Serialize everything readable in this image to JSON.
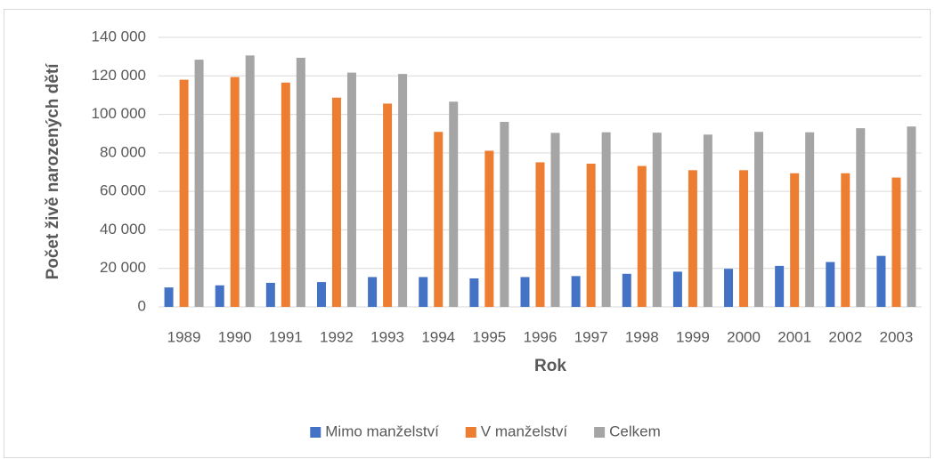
{
  "chart_data": {
    "type": "bar",
    "x_label": "Rok",
    "y_label": "Počet živě narozených dětí",
    "categories": [
      "1989",
      "1990",
      "1991",
      "1992",
      "1993",
      "1994",
      "1995",
      "1996",
      "1997",
      "1998",
      "1999",
      "2000",
      "2001",
      "2002",
      "2003"
    ],
    "series": [
      {
        "name": "Mimo manželství",
        "color": "#4472c4",
        "values": [
          10100,
          11200,
          12500,
          12900,
          15500,
          15500,
          14800,
          15500,
          16000,
          17200,
          18300,
          19800,
          21300,
          23300,
          26500
        ]
      },
      {
        "name": "V manželství",
        "color": "#ed7d31",
        "values": [
          118000,
          119400,
          116500,
          108700,
          105600,
          90900,
          81100,
          75100,
          74400,
          73200,
          71000,
          71000,
          69400,
          69400,
          67200
        ]
      },
      {
        "name": "Celkem",
        "color": "#a5a5a5",
        "values": [
          128400,
          130600,
          129400,
          121700,
          121000,
          106600,
          96100,
          90400,
          90700,
          90500,
          89500,
          90900,
          90700,
          92800,
          93700
        ]
      }
    ],
    "ylim": [
      0,
      140000
    ],
    "yticks": [
      0,
      {
        "value": 20000,
        "label": "20 000"
      },
      {
        "value": 40000,
        "label": "40 000"
      },
      {
        "value": 60000,
        "label": "60 000"
      },
      {
        "value": 80000,
        "label": "80 000"
      },
      {
        "value": 100000,
        "label": "100 000"
      },
      {
        "value": 120000,
        "label": "120 000"
      },
      {
        "value": 140000,
        "label": "140 000"
      }
    ],
    "grid": true,
    "legend": "bottom"
  }
}
